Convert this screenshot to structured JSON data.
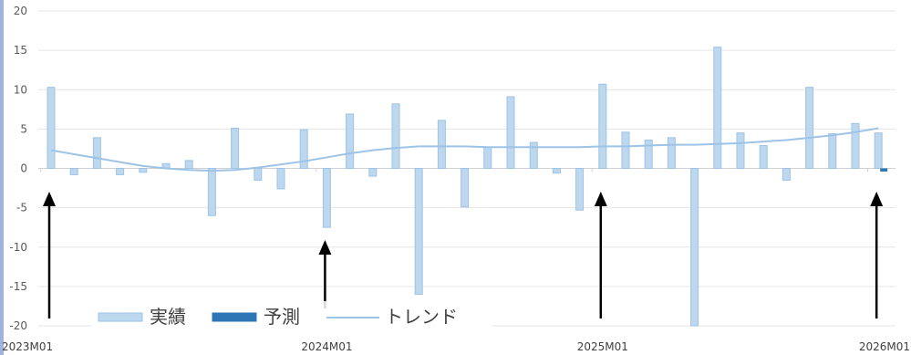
{
  "chart_data": {
    "type": "bar",
    "title": "",
    "xlabel": "",
    "ylabel": "",
    "ylim": [
      -20,
      20
    ],
    "yticks": [
      20,
      15,
      10,
      5,
      0,
      -5,
      -10,
      -15,
      -20
    ],
    "ytick_labels": [
      "20",
      "15",
      "10",
      "5",
      "0",
      "-5",
      "-10",
      "-15",
      "-20"
    ],
    "x_labels": [
      {
        "index": 0,
        "label": "2023M01"
      },
      {
        "index": 12,
        "label": "2024M01"
      },
      {
        "index": 24,
        "label": "2025M01"
      },
      {
        "index": 36,
        "label": "2026M01"
      }
    ],
    "grid": true,
    "legend": {
      "placement": "bottom-left",
      "entries": [
        {
          "label": "実績",
          "kind": "bar",
          "color": "#bdd7ee"
        },
        {
          "label": "予測",
          "kind": "bar",
          "color": "#2e75b6"
        },
        {
          "label": "トレンド",
          "kind": "line",
          "color": "#9dc3e6"
        }
      ]
    },
    "series": [
      {
        "name": "実績",
        "kind": "bar",
        "color": "#bdd7ee",
        "border": "#9dc3e6",
        "values": [
          10.3,
          -0.8,
          3.9,
          -0.8,
          -0.5,
          0.6,
          1.0,
          -6.0,
          5.1,
          -1.5,
          -2.6,
          4.9,
          -7.5,
          6.9,
          -1.0,
          8.2,
          -16.0,
          6.1,
          -4.9,
          2.7,
          9.1,
          3.3,
          -0.6,
          -5.3,
          10.7,
          4.6,
          3.6,
          3.9,
          -20.0,
          15.4,
          4.5,
          2.9,
          -1.5,
          10.3,
          4.4,
          5.7,
          4.5
        ]
      },
      {
        "name": "予測",
        "kind": "bar",
        "color": "#2e75b6",
        "values": [
          null,
          null,
          null,
          null,
          null,
          null,
          null,
          null,
          null,
          null,
          null,
          null,
          null,
          null,
          null,
          null,
          null,
          null,
          null,
          null,
          null,
          null,
          null,
          null,
          null,
          null,
          null,
          null,
          null,
          null,
          null,
          null,
          null,
          null,
          null,
          null,
          -0.4
        ]
      },
      {
        "name": "トレンド",
        "kind": "line",
        "color": "#9dc3e6",
        "values": [
          2.3,
          1.8,
          1.3,
          0.8,
          0.3,
          0.0,
          -0.2,
          -0.3,
          -0.2,
          0.1,
          0.5,
          0.9,
          1.4,
          1.9,
          2.3,
          2.6,
          2.8,
          2.8,
          2.8,
          2.7,
          2.7,
          2.7,
          2.7,
          2.7,
          2.8,
          2.8,
          2.9,
          3.0,
          3.0,
          3.1,
          3.2,
          3.4,
          3.6,
          3.9,
          4.2,
          4.6,
          5.1
        ]
      }
    ],
    "annotations": {
      "arrows_at_index": [
        0,
        12,
        24,
        36
      ],
      "arrow_color": "#000000"
    }
  }
}
